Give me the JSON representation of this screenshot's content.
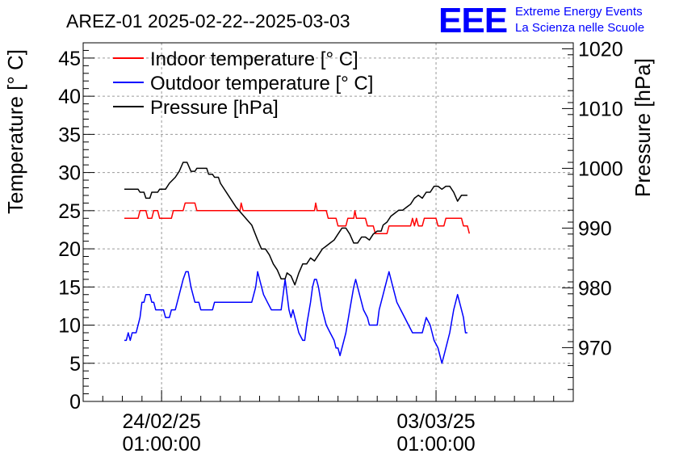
{
  "chart_data": {
    "type": "line",
    "title": "AREZ-01 2025-02-22--2025-03-03",
    "ylabel": "Temperature [° C]",
    "y2label": "Pressure [hPa]",
    "ylim": [
      0,
      47
    ],
    "y2lim": [
      961,
      1021
    ],
    "xlim": [
      0,
      12.5
    ],
    "yticks": [
      "0",
      "5",
      "10",
      "15",
      "20",
      "25",
      "30",
      "35",
      "40",
      "45"
    ],
    "y2ticks": [
      "970",
      "980",
      "990",
      "1000",
      "1010",
      "1020"
    ],
    "xticks": [
      {
        "x": 2.0,
        "date": "24/02/25",
        "time": "01:00:00"
      },
      {
        "x": 9.0,
        "date": "03/03/25",
        "time": "01:00:00"
      }
    ],
    "grid": true,
    "legend_position": "top-left",
    "logo": {
      "text": "EEE",
      "line1": "Extreme Energy Events",
      "line2": "La Scienza nelle Scuole"
    },
    "series": [
      {
        "name": "Indoor temperature [° C]",
        "color": "#ff0000",
        "axis": "left",
        "points": [
          [
            1.05,
            24
          ],
          [
            1.4,
            24
          ],
          [
            1.45,
            25
          ],
          [
            1.6,
            25
          ],
          [
            1.65,
            24
          ],
          [
            1.75,
            24
          ],
          [
            1.8,
            25
          ],
          [
            1.9,
            25
          ],
          [
            1.95,
            24
          ],
          [
            2.25,
            24
          ],
          [
            2.3,
            25
          ],
          [
            2.55,
            25
          ],
          [
            2.6,
            26
          ],
          [
            2.85,
            26
          ],
          [
            2.9,
            25
          ],
          [
            4.0,
            25
          ],
          [
            4.03,
            26
          ],
          [
            4.08,
            25
          ],
          [
            5.9,
            25
          ],
          [
            5.93,
            26
          ],
          [
            5.97,
            25
          ],
          [
            6.2,
            25
          ],
          [
            6.25,
            24
          ],
          [
            6.45,
            24
          ],
          [
            6.5,
            23
          ],
          [
            6.7,
            23
          ],
          [
            6.75,
            24
          ],
          [
            6.9,
            24
          ],
          [
            6.93,
            25
          ],
          [
            6.97,
            24
          ],
          [
            7.2,
            24
          ],
          [
            7.25,
            23
          ],
          [
            7.4,
            23
          ],
          [
            7.45,
            22
          ],
          [
            7.75,
            22
          ],
          [
            7.8,
            23
          ],
          [
            8.35,
            23
          ],
          [
            8.4,
            24
          ],
          [
            8.45,
            23
          ],
          [
            8.5,
            24
          ],
          [
            8.55,
            23
          ],
          [
            8.65,
            23
          ],
          [
            8.7,
            24
          ],
          [
            9.0,
            24
          ],
          [
            9.05,
            23
          ],
          [
            9.2,
            23
          ],
          [
            9.25,
            24
          ],
          [
            9.65,
            24
          ],
          [
            9.7,
            23
          ],
          [
            9.8,
            23
          ],
          [
            9.85,
            22
          ]
        ]
      },
      {
        "name": "Outdoor temperature [° C]",
        "color": "#0000ff",
        "axis": "left",
        "points": [
          [
            1.05,
            8
          ],
          [
            1.1,
            8
          ],
          [
            1.15,
            9
          ],
          [
            1.2,
            8
          ],
          [
            1.25,
            9
          ],
          [
            1.35,
            9
          ],
          [
            1.45,
            11
          ],
          [
            1.5,
            13
          ],
          [
            1.55,
            13
          ],
          [
            1.6,
            14
          ],
          [
            1.7,
            14
          ],
          [
            1.75,
            13
          ],
          [
            1.8,
            13
          ],
          [
            1.85,
            12
          ],
          [
            1.95,
            12
          ],
          [
            2.05,
            12
          ],
          [
            2.1,
            11
          ],
          [
            2.2,
            11
          ],
          [
            2.25,
            12
          ],
          [
            2.35,
            12
          ],
          [
            2.45,
            14
          ],
          [
            2.55,
            16
          ],
          [
            2.62,
            17
          ],
          [
            2.68,
            17
          ],
          [
            2.75,
            15
          ],
          [
            2.85,
            13
          ],
          [
            2.95,
            13
          ],
          [
            3.0,
            12
          ],
          [
            3.3,
            12
          ],
          [
            3.35,
            13
          ],
          [
            4.3,
            13
          ],
          [
            4.4,
            15
          ],
          [
            4.45,
            17
          ],
          [
            4.5,
            16
          ],
          [
            4.6,
            14
          ],
          [
            4.7,
            13
          ],
          [
            4.8,
            12
          ],
          [
            5.05,
            12
          ],
          [
            5.1,
            14
          ],
          [
            5.15,
            16
          ],
          [
            5.2,
            14
          ],
          [
            5.25,
            12
          ],
          [
            5.3,
            11
          ],
          [
            5.35,
            12
          ],
          [
            5.4,
            11
          ],
          [
            5.45,
            10
          ],
          [
            5.5,
            9
          ],
          [
            5.6,
            8
          ],
          [
            5.65,
            8
          ],
          [
            5.7,
            10
          ],
          [
            5.8,
            13
          ],
          [
            5.85,
            15
          ],
          [
            5.9,
            16
          ],
          [
            5.95,
            16
          ],
          [
            6.0,
            15
          ],
          [
            6.1,
            12
          ],
          [
            6.2,
            10
          ],
          [
            6.3,
            9
          ],
          [
            6.4,
            8
          ],
          [
            6.45,
            7
          ],
          [
            6.5,
            7
          ],
          [
            6.55,
            6
          ],
          [
            6.6,
            7
          ],
          [
            6.7,
            9
          ],
          [
            6.8,
            12
          ],
          [
            6.9,
            15
          ],
          [
            6.95,
            16
          ],
          [
            7.05,
            14
          ],
          [
            7.15,
            12
          ],
          [
            7.25,
            11
          ],
          [
            7.3,
            10
          ],
          [
            7.5,
            10
          ],
          [
            7.55,
            12
          ],
          [
            7.65,
            14
          ],
          [
            7.75,
            16
          ],
          [
            7.8,
            17
          ],
          [
            7.9,
            15
          ],
          [
            8.0,
            13
          ],
          [
            8.1,
            12
          ],
          [
            8.2,
            11
          ],
          [
            8.3,
            10
          ],
          [
            8.4,
            9
          ],
          [
            8.65,
            9
          ],
          [
            8.7,
            10
          ],
          [
            8.75,
            11
          ],
          [
            8.85,
            10
          ],
          [
            8.9,
            9
          ],
          [
            8.95,
            8
          ],
          [
            9.05,
            7
          ],
          [
            9.1,
            6
          ],
          [
            9.15,
            5
          ],
          [
            9.2,
            6
          ],
          [
            9.25,
            7
          ],
          [
            9.35,
            9
          ],
          [
            9.45,
            12
          ],
          [
            9.55,
            14
          ],
          [
            9.65,
            12
          ],
          [
            9.7,
            11
          ],
          [
            9.75,
            9
          ],
          [
            9.8,
            9
          ]
        ]
      },
      {
        "name": "Pressure [hPa]",
        "color": "#000000",
        "axis": "right",
        "points": [
          [
            1.05,
            996.5
          ],
          [
            1.4,
            996.5
          ],
          [
            1.45,
            996
          ],
          [
            1.55,
            996
          ],
          [
            1.6,
            995
          ],
          [
            1.7,
            995
          ],
          [
            1.75,
            996
          ],
          [
            1.9,
            996
          ],
          [
            1.95,
            996.5
          ],
          [
            2.1,
            996.5
          ],
          [
            2.2,
            997.5
          ],
          [
            2.35,
            998.5
          ],
          [
            2.45,
            999.5
          ],
          [
            2.55,
            1001
          ],
          [
            2.65,
            1001
          ],
          [
            2.75,
            999.5
          ],
          [
            2.85,
            999.5
          ],
          [
            2.9,
            1000
          ],
          [
            3.15,
            1000
          ],
          [
            3.2,
            999
          ],
          [
            3.3,
            999
          ],
          [
            3.35,
            998.5
          ],
          [
            3.45,
            998.5
          ],
          [
            3.5,
            997.5
          ],
          [
            3.7,
            995.5
          ],
          [
            3.9,
            993.5
          ],
          [
            4.1,
            992
          ],
          [
            4.3,
            990.5
          ],
          [
            4.45,
            988
          ],
          [
            4.55,
            986.5
          ],
          [
            4.65,
            986.5
          ],
          [
            4.75,
            985.5
          ],
          [
            4.85,
            984
          ],
          [
            4.95,
            983
          ],
          [
            5.05,
            981.5
          ],
          [
            5.15,
            981.5
          ],
          [
            5.2,
            982.5
          ],
          [
            5.3,
            982
          ],
          [
            5.4,
            980.5
          ],
          [
            5.5,
            982.5
          ],
          [
            5.6,
            984
          ],
          [
            5.7,
            984
          ],
          [
            5.8,
            985
          ],
          [
            5.9,
            984.5
          ],
          [
            6.0,
            985.5
          ],
          [
            6.1,
            986.5
          ],
          [
            6.2,
            987
          ],
          [
            6.3,
            987.5
          ],
          [
            6.4,
            988
          ],
          [
            6.5,
            989
          ],
          [
            6.6,
            990
          ],
          [
            6.7,
            990
          ],
          [
            6.8,
            989
          ],
          [
            6.9,
            987.5
          ],
          [
            7.0,
            987.5
          ],
          [
            7.1,
            988.5
          ],
          [
            7.2,
            988.5
          ],
          [
            7.3,
            988
          ],
          [
            7.4,
            989
          ],
          [
            7.5,
            989.5
          ],
          [
            7.6,
            989.5
          ],
          [
            7.65,
            990.5
          ],
          [
            7.75,
            991
          ],
          [
            7.85,
            992
          ],
          [
            7.95,
            992.5
          ],
          [
            8.05,
            993
          ],
          [
            8.15,
            993
          ],
          [
            8.25,
            993.5
          ],
          [
            8.35,
            994
          ],
          [
            8.45,
            995
          ],
          [
            8.55,
            995.5
          ],
          [
            8.65,
            995
          ],
          [
            8.75,
            996
          ],
          [
            8.85,
            996
          ],
          [
            8.95,
            997
          ],
          [
            9.05,
            997
          ],
          [
            9.15,
            996.5
          ],
          [
            9.25,
            997
          ],
          [
            9.35,
            997
          ],
          [
            9.45,
            996
          ],
          [
            9.55,
            994.5
          ],
          [
            9.65,
            995.5
          ],
          [
            9.75,
            995.5
          ],
          [
            9.8,
            995.5
          ]
        ]
      }
    ]
  }
}
